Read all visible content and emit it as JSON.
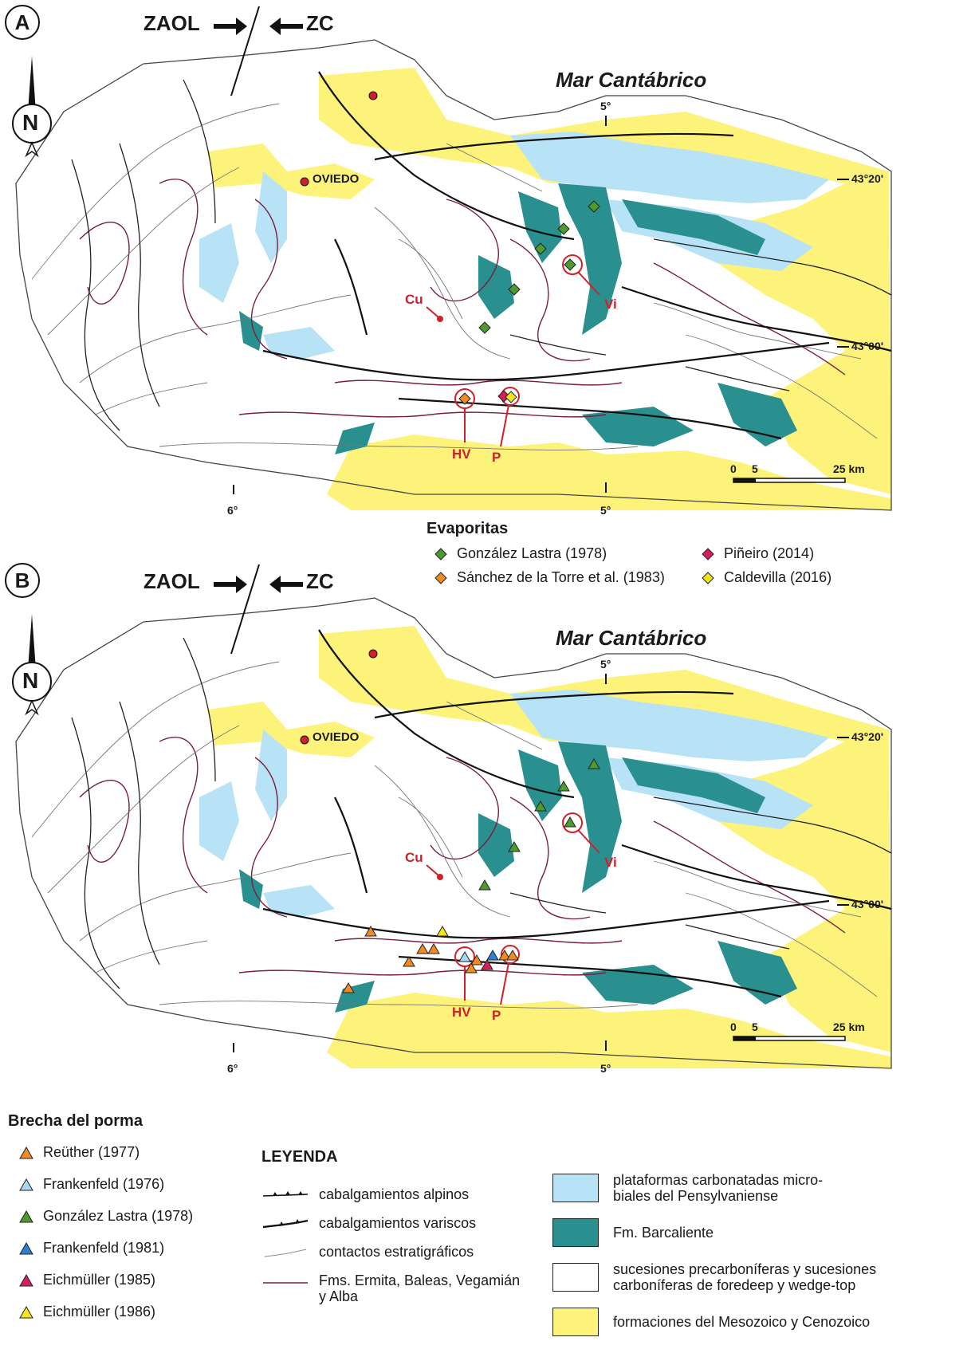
{
  "panels": [
    {
      "letter": "A",
      "zaol": "ZAOL",
      "zc": "ZC",
      "north": "N",
      "sea": "Mar Cantábrico",
      "lon_top": "5°",
      "lon_bottom_w": "6°",
      "lon_bottom_e": "5°",
      "lat_n": "43°20'",
      "lat_s": "43°00'",
      "city": "OVIEDO",
      "loc_cu": "Cu",
      "loc_vi": "Vi",
      "loc_hv": "HV",
      "loc_p": "P",
      "scale": [
        "0",
        "5",
        "25 km"
      ]
    },
    {
      "letter": "B",
      "zaol": "ZAOL",
      "zc": "ZC",
      "north": "N",
      "sea": "Mar Cantábrico",
      "lon_top": "5°",
      "lon_bottom_w": "6°",
      "lon_bottom_e": "5°",
      "lat_n": "43°20'",
      "lat_s": "43°00'",
      "city": "OVIEDO",
      "loc_cu": "Cu",
      "loc_vi": "Vi",
      "loc_hv": "HV",
      "loc_p": "P",
      "scale": [
        "0",
        "5",
        "25 km"
      ]
    }
  ],
  "evaporitas": {
    "title": "Evaporitas",
    "items": [
      {
        "label": "González Lastra (1978)",
        "color": "#4d9a2e"
      },
      {
        "label": "Sánchez de la Torre et al. (1983)",
        "color": "#f08a24"
      },
      {
        "label": "Piñeiro (2014)",
        "color": "#d81e5b"
      },
      {
        "label": "Caldevilla (2016)",
        "color": "#f6e619"
      }
    ]
  },
  "brecha": {
    "title": "Brecha del porma",
    "items": [
      {
        "label": "Reüther (1977)",
        "color": "#f08a24"
      },
      {
        "label": "Frankenfeld (1976)",
        "color": "#a7d8f0"
      },
      {
        "label": "González Lastra (1978)",
        "color": "#4d9a2e"
      },
      {
        "label": "Frankenfeld (1981)",
        "color": "#2f7fd0"
      },
      {
        "label": "Eichmüller (1985)",
        "color": "#d81e5b"
      },
      {
        "label": "Eichmüller (1986)",
        "color": "#f6e619"
      }
    ]
  },
  "leyenda": {
    "title": "LEYENDA",
    "lines": [
      {
        "label": "cabalgamientos alpinos",
        "icon": "alpine-thrust-icon"
      },
      {
        "label": "cabalgamientos variscos",
        "icon": "variscan-thrust-icon"
      },
      {
        "label": "contactos estratigráficos",
        "icon": "contact-line-icon"
      },
      {
        "label": "Fms. Ermita, Baleas, Vegamián",
        "label2": "y Alba",
        "icon": "formation-line-icon"
      }
    ],
    "units": [
      {
        "label": "plataformas carbonatadas micro-",
        "label2": "biales del Pensylvaniense",
        "color": "#b8e2f6"
      },
      {
        "label": "Fm. Barcaliente",
        "color": "#2a8f8f"
      },
      {
        "label": "sucesiones precarboníferas y sucesiones",
        "label2": "carboníferas de foredeep y wedge-top",
        "color": "#ffffff"
      },
      {
        "label": "formaciones del Mesozoico y Cenozoico",
        "color": "#fdf37a"
      }
    ]
  }
}
